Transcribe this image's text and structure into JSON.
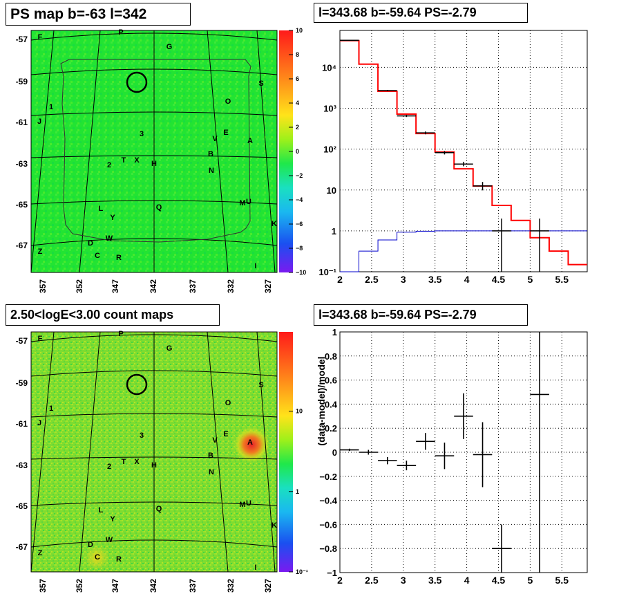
{
  "titles": {
    "map_top": "PS map b=-63 l=342",
    "spec_top": "l=343.68 b=-59.64 PS=-2.79",
    "map_bottom": "2.50<logE<3.00 count maps",
    "spec_bottom": "l=343.68 b=-59.64 PS=-2.79"
  },
  "map_axes": {
    "lat_ticks": [
      "-57",
      "-59",
      "-61",
      "-63",
      "-65",
      "-67"
    ],
    "lon_ticks": [
      "357",
      "352",
      "347",
      "342",
      "337",
      "332",
      "327"
    ]
  },
  "source_labels": [
    "F",
    "P",
    "G",
    "S",
    "O",
    "1",
    "J",
    "3",
    "V",
    "E",
    "A",
    "2",
    "T",
    "X",
    "H",
    "B",
    "N",
    "L",
    "Y",
    "Q",
    "M",
    "U",
    "K",
    "D",
    "W",
    "C",
    "R",
    "Z",
    "I"
  ],
  "colors": {
    "data": "#000000",
    "total_model": "#ff0000",
    "point_source_model": "#0000cc",
    "map_background_top": "#22e432",
    "map_background_bottom": "#7fdc30"
  },
  "colorbars": {
    "top": {
      "ticks": [
        "10",
        "8",
        "6",
        "4",
        "2",
        "0",
        "−2",
        "−4",
        "−6",
        "−8",
        "−10"
      ]
    },
    "bottom": {
      "ticks": [
        "10",
        "1",
        "10⁻¹"
      ],
      "scale": "log"
    }
  },
  "chart_data": [
    {
      "type": "heatmap",
      "title": "PS map b=-63 l=342",
      "xlabel": "",
      "ylabel": "",
      "x_ticks": [
        "357",
        "352",
        "347",
        "342",
        "337",
        "332",
        "327"
      ],
      "y_ticks": [
        "-57",
        "-59",
        "-61",
        "-63",
        "-65",
        "-67"
      ],
      "z_range": [
        -10,
        10
      ],
      "marked_circle": {
        "l": 343.68,
        "b": -59.64
      }
    },
    {
      "type": "line",
      "title": "l=343.68 b=-59.64 PS=-2.79",
      "xlabel": "",
      "ylabel": "",
      "xlim": [
        2,
        5.9
      ],
      "ylim": [
        0.1,
        80000
      ],
      "yscale": "log",
      "x_ticks": [
        "2",
        "2.5",
        "3",
        "3.5",
        "4",
        "4.5",
        "5",
        "5.5"
      ],
      "y_ticks": [
        "10⁻¹",
        "1",
        "10",
        "10²",
        "10³",
        "10⁴"
      ],
      "grid": true,
      "bin_edges": [
        2.0,
        2.3,
        2.6,
        2.9,
        3.2,
        3.5,
        3.8,
        4.1,
        4.4,
        4.7,
        5.0,
        5.3,
        5.6,
        5.9
      ],
      "series": [
        {
          "name": "",
          "role": "total model",
          "style": "step",
          "values": [
            45000,
            12000,
            2600,
            720,
            240,
            85,
            33,
            12.5,
            4.2,
            1.8,
            0.68,
            0.32,
            0.15
          ]
        },
        {
          "name": "",
          "role": "point source model",
          "style": "step",
          "values": [
            0.1,
            0.32,
            0.6,
            0.93,
            0.98,
            1.0,
            1.0,
            1.0,
            1.0,
            1.0,
            1.0,
            1.0,
            1.0
          ]
        },
        {
          "name": "",
          "role": "data",
          "style": "error-bar",
          "x": [
            2.15,
            2.75,
            3.05,
            3.35,
            3.65,
            3.95,
            4.25,
            4.55,
            5.15
          ],
          "y": [
            46000,
            2700,
            650,
            250,
            82,
            43,
            12.6,
            1.0,
            1.0
          ],
          "y_low": [
            45000,
            2600,
            610,
            230,
            74,
            38,
            9.8,
            0.1,
            0.1
          ],
          "y_high": [
            47000,
            2800,
            690,
            270,
            90,
            49,
            15.7,
            2.0,
            2.0
          ]
        }
      ]
    },
    {
      "type": "heatmap",
      "title": "2.50<logE<3.00 count maps",
      "xlabel": "",
      "ylabel": "",
      "x_ticks": [
        "357",
        "352",
        "347",
        "342",
        "337",
        "332",
        "327"
      ],
      "y_ticks": [
        "-57",
        "-59",
        "-61",
        "-63",
        "-65",
        "-67"
      ],
      "z_scale": "log",
      "z_ticks": [
        "10",
        "1",
        "10⁻¹"
      ],
      "marked_circle": {
        "l": 343.68,
        "b": -59.64
      },
      "hotspots": [
        {
          "label": "A",
          "l": 329.6,
          "b": -62.6
        },
        {
          "label": "C",
          "l": 349.5,
          "b": -67.6
        }
      ]
    },
    {
      "type": "scatter",
      "title": "l=343.68 b=-59.64 PS=-2.79",
      "xlabel": "",
      "ylabel": "(data-model)/model",
      "xlim": [
        2,
        5.9
      ],
      "ylim": [
        -1,
        1
      ],
      "x_ticks": [
        "2",
        "2.5",
        "3",
        "3.5",
        "4",
        "4.5",
        "5",
        "5.5"
      ],
      "y_ticks": [
        "−1",
        "−0.8",
        "−0.6",
        "−0.4",
        "−0.2",
        "0",
        "0.2",
        "0.4",
        "0.6",
        "0.8",
        "1"
      ],
      "grid": true,
      "series": [
        {
          "name": "",
          "style": "error-bar",
          "x": [
            2.15,
            2.45,
            2.75,
            3.05,
            3.35,
            3.65,
            3.95,
            4.25,
            4.55,
            5.15
          ],
          "y": [
            0.02,
            0.0,
            -0.07,
            -0.11,
            0.09,
            -0.03,
            0.3,
            -0.02,
            -0.8,
            0.48
          ],
          "yerr": [
            0.01,
            0.02,
            0.03,
            0.04,
            0.07,
            0.11,
            0.19,
            0.27,
            0.2,
            1.7
          ],
          "xerr": [
            0.15,
            0.15,
            0.15,
            0.15,
            0.15,
            0.15,
            0.15,
            0.15,
            0.15,
            0.15
          ]
        }
      ]
    }
  ]
}
